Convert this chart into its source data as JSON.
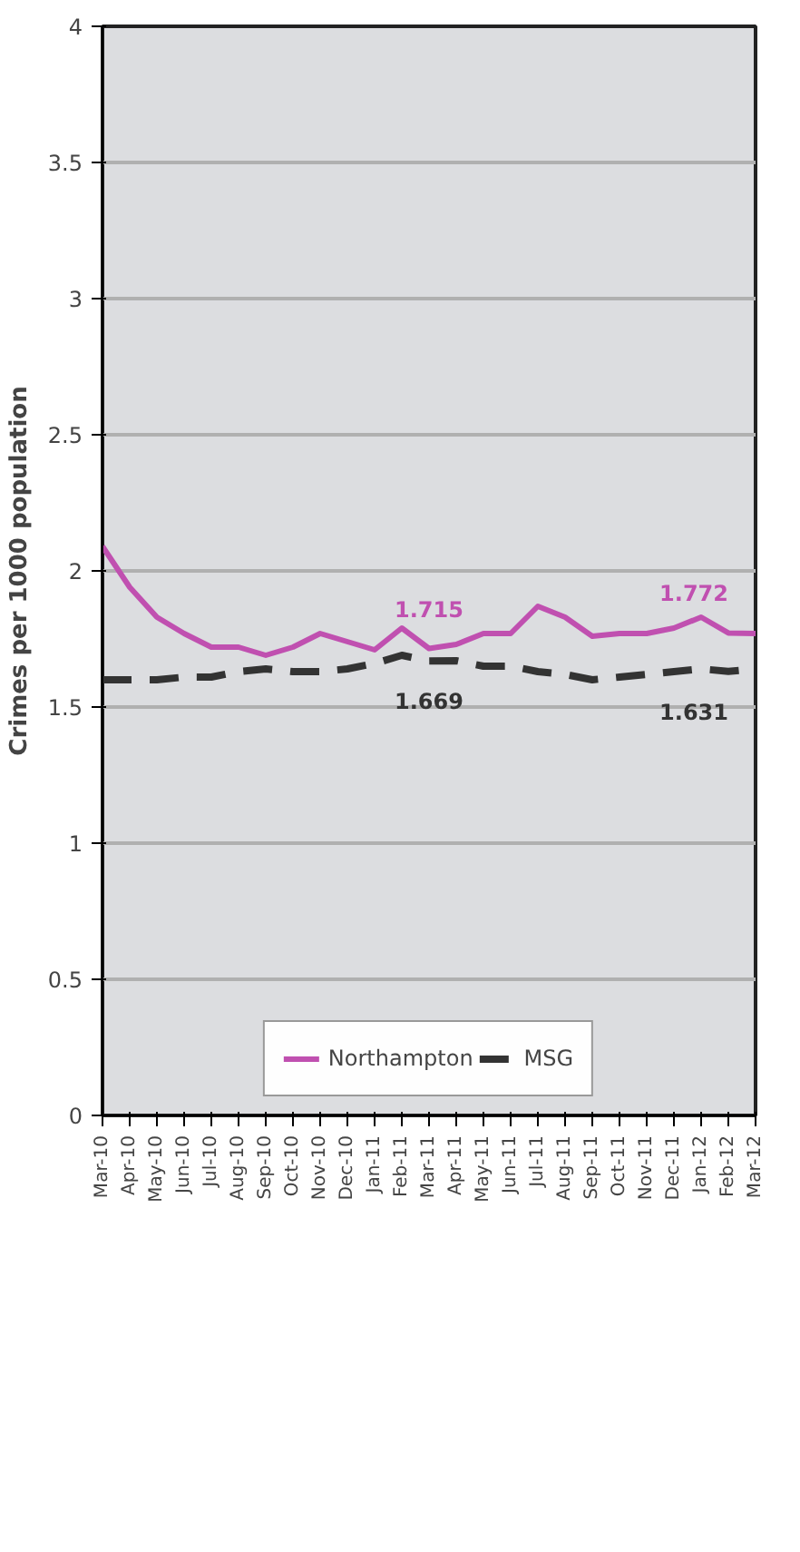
{
  "chart_data": {
    "type": "line",
    "ylabel": "Crimes per 1000 population",
    "categories": [
      "Mar-10",
      "Apr-10",
      "May-10",
      "Jun-10",
      "Jul-10",
      "Aug-10",
      "Sep-10",
      "Oct-10",
      "Nov-10",
      "Dec-10",
      "Jan-11",
      "Feb-11",
      "Mar-11",
      "Apr-11",
      "May-11",
      "Jun-11",
      "Jul-11",
      "Aug-11",
      "Sep-11",
      "Oct-11",
      "Nov-11",
      "Dec-11",
      "Jan-12",
      "Feb-12",
      "Mar-12"
    ],
    "series": [
      {
        "name": "Northampton",
        "color": "#c050b0",
        "line_style": "solid",
        "values": [
          2.09,
          1.94,
          1.83,
          1.77,
          1.72,
          1.72,
          1.69,
          1.72,
          1.77,
          1.74,
          1.71,
          1.79,
          1.715,
          1.73,
          1.77,
          1.77,
          1.87,
          1.83,
          1.76,
          1.77,
          1.77,
          1.79,
          1.83,
          1.772,
          1.77
        ]
      },
      {
        "name": "MSG",
        "color": "#333333",
        "line_style": "dashed",
        "values": [
          1.6,
          1.6,
          1.6,
          1.61,
          1.61,
          1.63,
          1.64,
          1.63,
          1.63,
          1.64,
          1.66,
          1.69,
          1.669,
          1.67,
          1.65,
          1.65,
          1.63,
          1.62,
          1.6,
          1.61,
          1.62,
          1.63,
          1.64,
          1.631,
          1.64
        ]
      }
    ],
    "ylim": [
      0,
      4
    ],
    "yticks": [
      0,
      0.5,
      1,
      1.5,
      2,
      2.5,
      3,
      3.5,
      4
    ],
    "grid": "y",
    "legend": "bottom",
    "annotations": [
      {
        "text": "1.772",
        "x": "Feb-12",
        "y": 1.772
      },
      {
        "text": "1.631",
        "x": "Feb-12",
        "y": 1.631
      },
      {
        "text": "1.715",
        "x": "Mar-11",
        "y": 1.715
      },
      {
        "text": "1.669",
        "x": "Mar-11",
        "y": 1.669
      }
    ]
  }
}
